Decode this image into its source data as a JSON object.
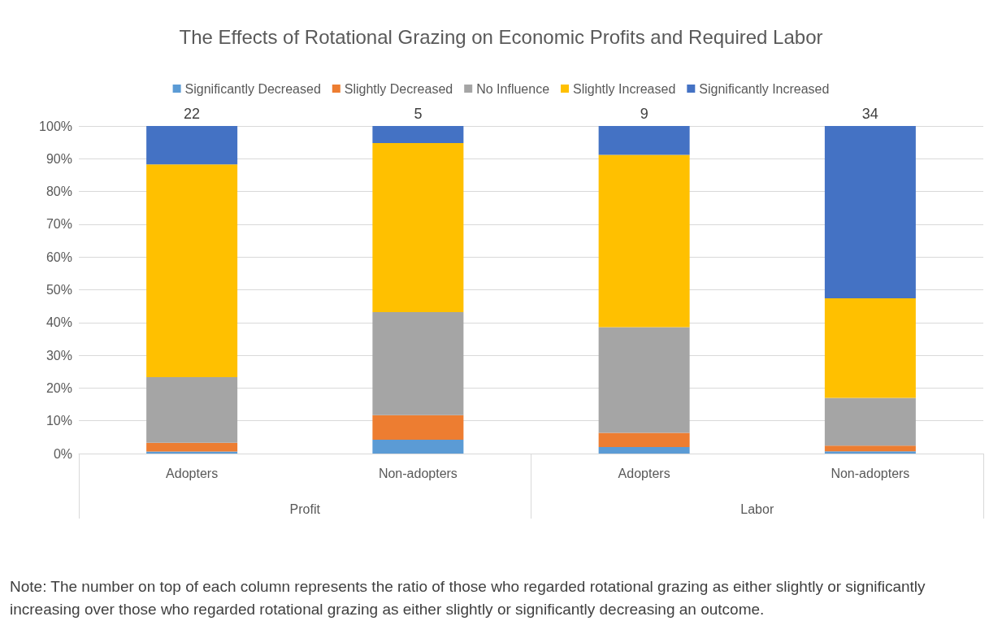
{
  "chart_data": {
    "type": "bar",
    "stacked": true,
    "title": "The Effects of Rotational Grazing on Economic Profits and Required Labor",
    "categories": [
      "Adopters",
      "Non-adopters",
      "Adopters",
      "Non-adopters"
    ],
    "series": [
      {
        "name": "Significantly Decreased",
        "color": "#5b9bd5",
        "values": [
          0.6,
          4.2,
          2.0,
          0.7
        ]
      },
      {
        "name": "Slightly Decreased",
        "color": "#ed7d31",
        "values": [
          2.7,
          7.5,
          4.3,
          1.7
        ]
      },
      {
        "name": "No Influence",
        "color": "#a5a5a5",
        "values": [
          20.0,
          31.5,
          32.3,
          14.6
        ]
      },
      {
        "name": "Slightly Increased",
        "color": "#ffc000",
        "values": [
          65.0,
          51.6,
          52.6,
          30.4
        ]
      },
      {
        "name": "Significantly Increased",
        "color": "#4472c4",
        "values": [
          11.7,
          5.2,
          8.8,
          52.6
        ]
      }
    ],
    "ylim": [
      0,
      100
    ],
    "yticks": [
      {
        "value": 0,
        "label": "0%"
      },
      {
        "value": 10,
        "label": "10%"
      },
      {
        "value": 20,
        "label": "20%"
      },
      {
        "value": 30,
        "label": "30%"
      },
      {
        "value": 40,
        "label": "40%"
      },
      {
        "value": 50,
        "label": "50%"
      },
      {
        "value": 60,
        "label": "60%"
      },
      {
        "value": 70,
        "label": "70%"
      },
      {
        "value": 80,
        "label": "80%"
      },
      {
        "value": 90,
        "label": "90%"
      },
      {
        "value": 100,
        "label": "100%"
      }
    ],
    "grid": "y",
    "legend": "top",
    "annotations": [
      "22",
      "5",
      "9",
      "34",
      "Profit",
      "Labor",
      "Note: The number on top of each column represents the ratio of those who regarded rotational grazing as either slightly or significantly increasing over those who regarded rotational grazing as either slightly or significantly decreasing an outcome."
    ]
  }
}
